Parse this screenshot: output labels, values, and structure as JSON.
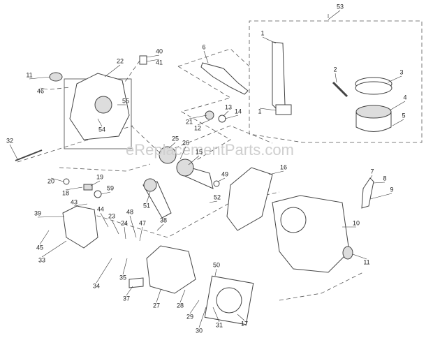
{
  "watermark": "eReplacementParts.com",
  "callouts": [
    "53",
    "1",
    "6",
    "40",
    "41",
    "22",
    "2",
    "3",
    "11",
    "46",
    "55",
    "1",
    "13",
    "14",
    "21",
    "12",
    "4",
    "5",
    "54",
    "32",
    "25",
    "26",
    "15",
    "16",
    "20",
    "19",
    "18",
    "59",
    "43",
    "49",
    "7",
    "8",
    "9",
    "51",
    "52",
    "39",
    "44",
    "48",
    "23",
    "24",
    "47",
    "38",
    "10",
    "45",
    "33",
    "11",
    "50",
    "34",
    "35",
    "37",
    "27",
    "28",
    "29",
    "30",
    "31",
    "17"
  ]
}
